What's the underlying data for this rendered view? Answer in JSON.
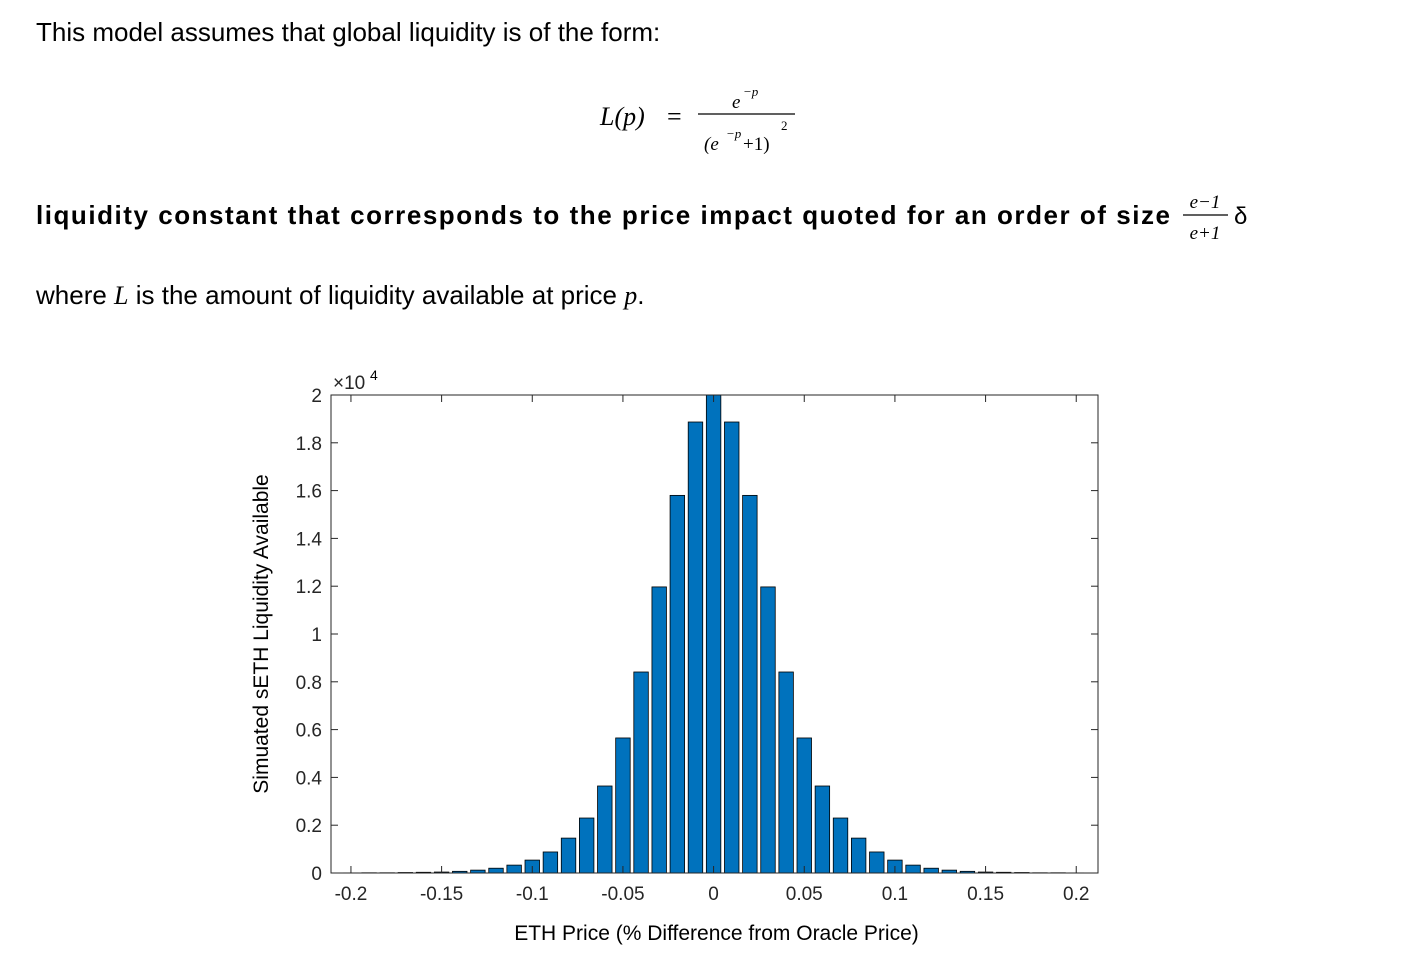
{
  "intro": "This model assumes that global liquidity is of the form:",
  "formula": {
    "lhs": "L(p)",
    "equals": "=",
    "numerator": "e",
    "numerator_exponent": "−p",
    "denominator_open": "(e",
    "denominator_exponent": "−p",
    "denominator_close": "+1)",
    "denominator_power": "2"
  },
  "bold_line": {
    "text": "liquidity constant that corresponds to the price impact quoted for an order of size",
    "fraction_numerator": "e−1",
    "fraction_denominator": "e+1",
    "symbol": "δ"
  },
  "where_line": {
    "parts": [
      "where ",
      "L",
      " is the amount of liquidity available at price ",
      "p",
      "."
    ]
  },
  "chart_data": {
    "type": "bar",
    "x": [
      -0.2,
      -0.19,
      -0.18,
      -0.17,
      -0.16,
      -0.15,
      -0.14,
      -0.13,
      -0.12,
      -0.11,
      -0.1,
      -0.09,
      -0.08,
      -0.07,
      -0.06,
      -0.05,
      -0.04,
      -0.03,
      -0.02,
      -0.01,
      0,
      0.01,
      0.02,
      0.03,
      0.04,
      0.05,
      0.06,
      0.07,
      0.08,
      0.09,
      0.1,
      0.11,
      0.12,
      0.13,
      0.14,
      0.15,
      0.16,
      0.17,
      0.18,
      0.19,
      0.2
    ],
    "values": [
      0.0005,
      0.001,
      0.001,
      0.002,
      0.003,
      0.004,
      0.007,
      0.012,
      0.02,
      0.033,
      0.054,
      0.088,
      0.146,
      0.23,
      0.364,
      0.565,
      0.841,
      1.197,
      1.58,
      1.887,
      2.0,
      1.887,
      1.58,
      1.197,
      0.841,
      0.565,
      0.364,
      0.23,
      0.146,
      0.088,
      0.054,
      0.033,
      0.02,
      0.012,
      0.007,
      0.004,
      0.003,
      0.002,
      0.001,
      0.001,
      0.0005
    ],
    "color": "#0072bd",
    "xlim": [
      -0.211,
      0.212
    ],
    "ylim": [
      0,
      2
    ],
    "xticks": [
      -0.2,
      -0.15,
      -0.1,
      -0.05,
      0,
      0.05,
      0.1,
      0.15,
      0.2
    ],
    "yticks": [
      0,
      0.2,
      0.4,
      0.6,
      0.8,
      1,
      1.2,
      1.4,
      1.6,
      1.8,
      2
    ],
    "x_label": "ETH Price (% Difference from Oracle Price)",
    "y_label": "Simuated sETH Liquidity Available",
    "y_multiplier": "×10",
    "y_multiplier_exponent": "4"
  }
}
